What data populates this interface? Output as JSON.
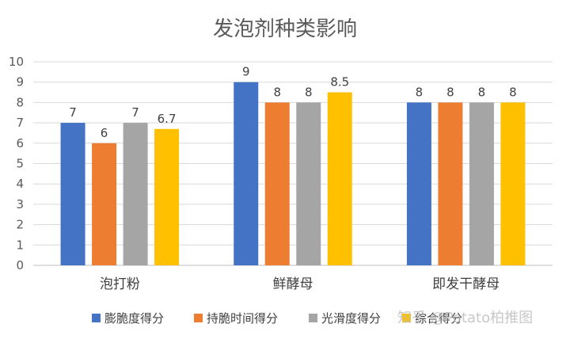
{
  "chart_data": {
    "type": "bar",
    "title": "发泡剂种类影响",
    "categories": [
      "泡打粉",
      "鲜酵母",
      "即发干酵母"
    ],
    "series": [
      {
        "name": "膨脆度得分",
        "color": "#4472C4",
        "values": [
          7,
          9,
          8
        ],
        "labels": [
          "7",
          "9",
          "8"
        ]
      },
      {
        "name": "持脆时间得分",
        "color": "#ED7D31",
        "values": [
          6,
          8,
          8
        ],
        "labels": [
          "6",
          "8",
          "8"
        ]
      },
      {
        "name": "光滑度得分",
        "color": "#A5A5A5",
        "values": [
          7,
          8,
          8
        ],
        "labels": [
          "7",
          "8",
          "8"
        ]
      },
      {
        "name": "综合得分",
        "color": "#FFC000",
        "values": [
          6.7,
          8.5,
          8
        ],
        "labels": [
          "6.7",
          "8.5",
          "8"
        ]
      }
    ],
    "ylim": [
      0,
      10
    ],
    "yticks": [
      "0",
      "1",
      "2",
      "3",
      "4",
      "5",
      "6",
      "7",
      "8",
      "9",
      "10"
    ],
    "grid": true,
    "legend": "bottom",
    "xlabel": "",
    "ylabel": ""
  },
  "watermark": "知乎 @Potato柏推图",
  "colors": {
    "grid": "#D9D9D9",
    "axis": "#BFBFBF"
  }
}
